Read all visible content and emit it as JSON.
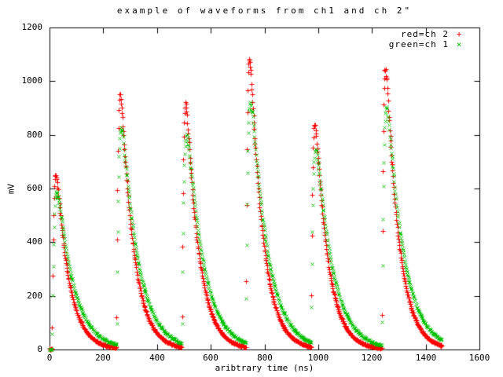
{
  "window": {
    "background": "#ffffff",
    "foreground": "#000000"
  },
  "chart_data": {
    "type": "scatter",
    "title": "example of waveforms from ch1 and ch 2\"",
    "xlabel": "aribtrary time (ns)",
    "ylabel": "mV",
    "xlim": [
      0,
      1600
    ],
    "ylim": [
      0,
      1200
    ],
    "x_ticks": [
      0,
      200,
      400,
      600,
      800,
      1000,
      1200,
      1400,
      1600
    ],
    "y_ticks": [
      0,
      200,
      400,
      600,
      800,
      1000,
      1200
    ],
    "grid": false,
    "tick_style": "inward, mirrored on all four borders",
    "legend": {
      "position": "top-right-inside",
      "entries": [
        {
          "label": "red=ch 2",
          "marker_glyph": "+",
          "color": "#ff0000"
        },
        {
          "label": "green=ch 1",
          "marker_glyph": "×",
          "color": "#00c000"
        }
      ]
    },
    "pulse_model": "y(t) = sum_i peak_mV_i * norm * (exp(-(t-t_onset_i)/tau_decay_ns) - exp(-(t-t_onset_i)/tau_rise_ns)) for t>t_onset_i, plus small noise; norm scales each pulse maximum to peak_mV",
    "sampling": {
      "t_start_ns": 0,
      "t_end_ns": 1460,
      "dt_ns": 1.5
    },
    "noise_mV_base": 2,
    "noise_mV_fraction": 0.008,
    "series": [
      {
        "name": "red=ch 2",
        "channel": "ch 2",
        "color": "#ff0000",
        "marker": "plus",
        "tau_rise_ns": 5,
        "tau_decay_ns": 48,
        "pulses": [
          {
            "t_onset_ns": 10,
            "peak_mV": 650
          },
          {
            "t_onset_ns": 250,
            "peak_mV": 945
          },
          {
            "t_onset_ns": 493,
            "peak_mV": 905
          },
          {
            "t_onset_ns": 731,
            "peak_mV": 1072
          },
          {
            "t_onset_ns": 974,
            "peak_mV": 828
          },
          {
            "t_onset_ns": 1237,
            "peak_mV": 1037
          }
        ]
      },
      {
        "name": "green=ch 1",
        "channel": "ch 1",
        "color": "#00c000",
        "marker": "cross",
        "tau_rise_ns": 6.5,
        "tau_decay_ns": 62,
        "pulses": [
          {
            "t_onset_ns": 10,
            "peak_mV": 588
          },
          {
            "t_onset_ns": 250,
            "peak_mV": 808
          },
          {
            "t_onset_ns": 493,
            "peak_mV": 783
          },
          {
            "t_onset_ns": 731,
            "peak_mV": 898
          },
          {
            "t_onset_ns": 974,
            "peak_mV": 725
          },
          {
            "t_onset_ns": 1237,
            "peak_mV": 886
          }
        ]
      }
    ]
  }
}
